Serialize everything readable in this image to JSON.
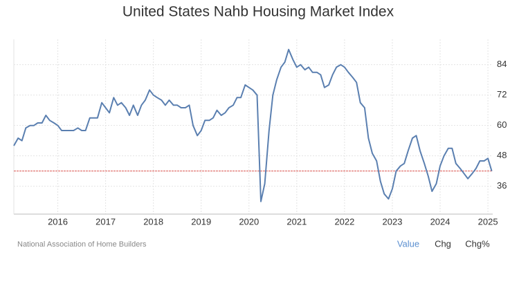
{
  "chart_data": {
    "type": "line",
    "title": "United States Nahb Housing Market Index",
    "source": "National Association of Home Builders",
    "buttons": [
      "Value",
      "Chg",
      "Chg%"
    ],
    "active_button": 0,
    "x": [
      2015.08,
      2015.17,
      2015.25,
      2015.33,
      2015.42,
      2015.5,
      2015.58,
      2015.67,
      2015.75,
      2015.83,
      2015.92,
      2016.0,
      2016.08,
      2016.17,
      2016.25,
      2016.33,
      2016.42,
      2016.5,
      2016.58,
      2016.67,
      2016.75,
      2016.83,
      2016.92,
      2017.0,
      2017.08,
      2017.17,
      2017.25,
      2017.33,
      2017.42,
      2017.5,
      2017.58,
      2017.67,
      2017.75,
      2017.83,
      2017.92,
      2018.0,
      2018.08,
      2018.17,
      2018.25,
      2018.33,
      2018.42,
      2018.5,
      2018.58,
      2018.67,
      2018.75,
      2018.83,
      2018.92,
      2019.0,
      2019.08,
      2019.17,
      2019.25,
      2019.33,
      2019.42,
      2019.5,
      2019.58,
      2019.67,
      2019.75,
      2019.83,
      2019.92,
      2020.0,
      2020.08,
      2020.17,
      2020.25,
      2020.33,
      2020.42,
      2020.5,
      2020.58,
      2020.67,
      2020.75,
      2020.83,
      2020.92,
      2021.0,
      2021.08,
      2021.17,
      2021.25,
      2021.33,
      2021.42,
      2021.5,
      2021.58,
      2021.67,
      2021.75,
      2021.83,
      2021.92,
      2022.0,
      2022.08,
      2022.17,
      2022.25,
      2022.33,
      2022.42,
      2022.5,
      2022.58,
      2022.67,
      2022.75,
      2022.83,
      2022.92,
      2023.0,
      2023.08,
      2023.17,
      2023.25,
      2023.33,
      2023.42,
      2023.5,
      2023.58,
      2023.67,
      2023.75,
      2023.83,
      2023.92,
      2024.0,
      2024.08,
      2024.17,
      2024.25,
      2024.33,
      2024.42,
      2024.5,
      2024.58,
      2024.67,
      2024.75,
      2024.83,
      2024.92,
      2025.0,
      2025.08
    ],
    "series": [
      {
        "name": "Value",
        "color": "#5a7fb0",
        "values": [
          52,
          55,
          54,
          59,
          60,
          60,
          61,
          61,
          64,
          62,
          61,
          60,
          58,
          58,
          58,
          58,
          59,
          58,
          58,
          63,
          63,
          63,
          69,
          67,
          65,
          71,
          68,
          69,
          67,
          64,
          68,
          64,
          68,
          70,
          74,
          72,
          71,
          70,
          68,
          70,
          68,
          68,
          67,
          67,
          68,
          60,
          56,
          58,
          62,
          62,
          63,
          66,
          64,
          65,
          67,
          68,
          71,
          71,
          76,
          75,
          74,
          72,
          30,
          37,
          58,
          72,
          78,
          83,
          85,
          90,
          86,
          83,
          84,
          82,
          83,
          81,
          81,
          80,
          75,
          76,
          80,
          83,
          84,
          83,
          81,
          79,
          77,
          69,
          67,
          55,
          49,
          46,
          38,
          33,
          31,
          35,
          42,
          44,
          45,
          50,
          55,
          56,
          50,
          45,
          40,
          34,
          37,
          44,
          48,
          51,
          51,
          45,
          43,
          41,
          39,
          41,
          43,
          46,
          46,
          47,
          42
        ]
      }
    ],
    "reference_line": {
      "value": 42,
      "color": "#d9534f"
    },
    "xlim": [
      2015.08,
      2025.1
    ],
    "xticks": [
      2016,
      2017,
      2018,
      2019,
      2020,
      2021,
      2022,
      2023,
      2024,
      2025
    ],
    "ylim": [
      25,
      94
    ],
    "yticks": [
      36,
      48,
      60,
      72,
      84
    ],
    "grid": true
  }
}
